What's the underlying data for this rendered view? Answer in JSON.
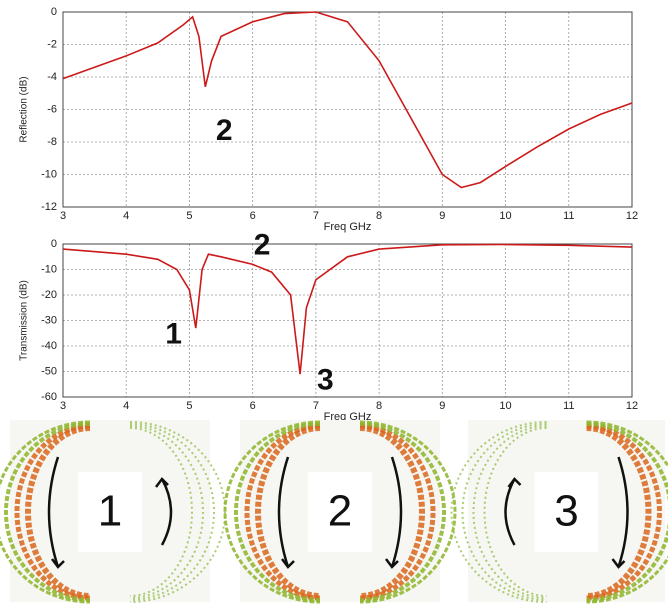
{
  "chart_data": [
    {
      "type": "line",
      "y_label": "Reflection (dB)",
      "x_label": "Freq GHz",
      "x": [
        3,
        3.5,
        4,
        4.5,
        4.9,
        5.05,
        5.15,
        5.25,
        5.35,
        5.5,
        6,
        6.5,
        7,
        7.5,
        8,
        8.5,
        9,
        9.3,
        9.6,
        10,
        10.5,
        11,
        11.5,
        12
      ],
      "values": [
        -4.1,
        -3.4,
        -2.7,
        -1.9,
        -0.8,
        -0.3,
        -1.5,
        -4.6,
        -3.0,
        -1.5,
        -0.6,
        -0.1,
        0,
        -0.6,
        -3.0,
        -6.5,
        -10.0,
        -10.8,
        -10.5,
        -9.5,
        -8.3,
        -7.2,
        -6.3,
        -5.6
      ],
      "color": "#cc1a1a",
      "xlim": [
        3,
        12
      ],
      "xticks": [
        3,
        4,
        5,
        6,
        7,
        8,
        9,
        10,
        11,
        12
      ],
      "ylim": [
        -12,
        0
      ],
      "yticks": [
        -12,
        -10,
        -8,
        -6,
        -4,
        -2,
        0
      ],
      "grid": true,
      "annotations": [
        {
          "text": "2"
        }
      ]
    },
    {
      "type": "line",
      "y_label": "Transmission (dB)",
      "x_label": "Freq GHz",
      "x": [
        3,
        4,
        4.5,
        4.8,
        5.0,
        5.1,
        5.2,
        5.3,
        5.5,
        6,
        6.3,
        6.6,
        6.75,
        6.85,
        7,
        7.5,
        8,
        9,
        10,
        11,
        12
      ],
      "values": [
        -2,
        -4,
        -6,
        -10,
        -18,
        -33,
        -10,
        -4,
        -5,
        -8,
        -11,
        -20,
        -51,
        -25,
        -14,
        -5,
        -2,
        -0.3,
        -0.2,
        -0.5,
        -1.2
      ],
      "color": "#cc1a1a",
      "xlim": [
        3,
        12
      ],
      "xticks": [
        3,
        4,
        5,
        6,
        7,
        8,
        9,
        10,
        11,
        12
      ],
      "ylim": [
        -60,
        0
      ],
      "yticks": [
        -60,
        -50,
        -40,
        -30,
        -20,
        -10,
        0
      ],
      "grid": true,
      "annotations": [
        {
          "text": "2"
        },
        {
          "text": "1"
        },
        {
          "text": "3"
        }
      ]
    }
  ],
  "panels": [
    {
      "label": "1"
    },
    {
      "label": "2"
    },
    {
      "label": "3"
    }
  ]
}
